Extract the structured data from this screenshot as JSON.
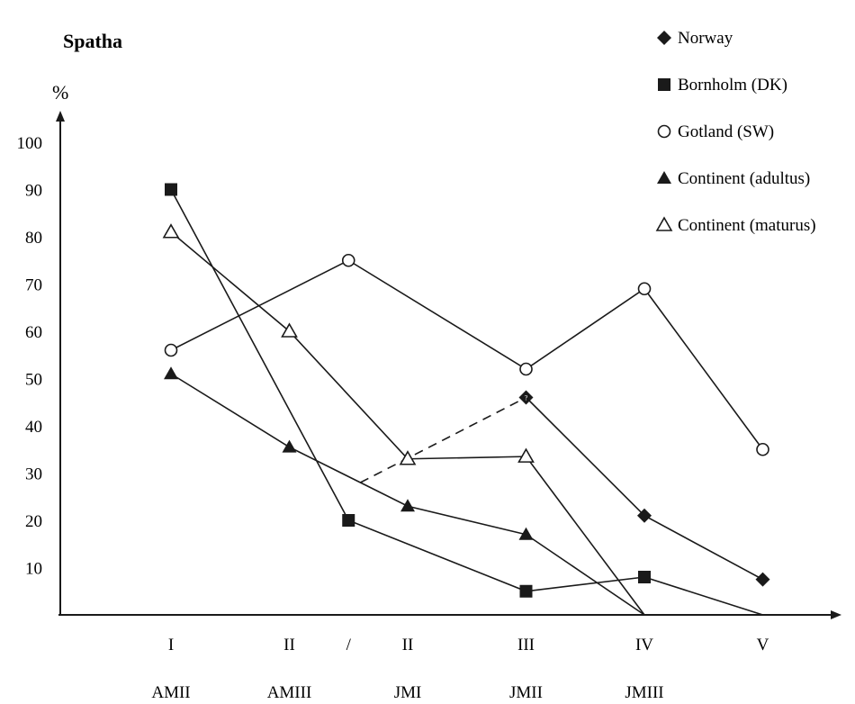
{
  "chart_data": {
    "type": "line",
    "title": "Spatha",
    "ylabel": "%",
    "ylim": [
      0,
      100
    ],
    "yticks": [
      10,
      20,
      30,
      40,
      50,
      60,
      70,
      80,
      90,
      100
    ],
    "x_tick_labels": [
      {
        "x": 1,
        "top": "I",
        "bottom": "AMII"
      },
      {
        "x": 2,
        "top": "II",
        "bottom": "AMIII"
      },
      {
        "x": 2.5,
        "top": "/",
        "bottom": ""
      },
      {
        "x": 3,
        "top": "II",
        "bottom": "JMI"
      },
      {
        "x": 4,
        "top": "III",
        "bottom": "JMII"
      },
      {
        "x": 5,
        "top": "IV",
        "bottom": "JMIII"
      },
      {
        "x": 6,
        "top": "V",
        "bottom": ""
      }
    ],
    "legend_position": "top-right",
    "grid": false,
    "series": [
      {
        "name": "Norway",
        "marker": "diamond-filled",
        "color": "#1a1a1a",
        "points": [
          [
            4,
            46
          ],
          [
            5,
            21
          ],
          [
            6,
            7.5
          ]
        ],
        "dashed_points": [
          [
            2.6,
            28
          ],
          [
            4,
            46
          ]
        ],
        "note_point": [
          4,
          46
        ],
        "note": "?"
      },
      {
        "name": "Bornholm (DK)",
        "marker": "square-filled",
        "color": "#1a1a1a",
        "points": [
          [
            1,
            90
          ],
          [
            2.5,
            20
          ],
          [
            4,
            5
          ],
          [
            5,
            8
          ]
        ],
        "tail_points": [
          [
            5,
            8
          ],
          [
            6,
            0
          ]
        ]
      },
      {
        "name": "Gotland (SW)",
        "marker": "circle-open",
        "color": "#1a1a1a",
        "points": [
          [
            1,
            56
          ],
          [
            2.5,
            75
          ],
          [
            4,
            52
          ],
          [
            5,
            69
          ],
          [
            6,
            35
          ]
        ]
      },
      {
        "name": "Continent (adultus)",
        "marker": "triangle-filled",
        "color": "#1a1a1a",
        "points": [
          [
            1,
            51
          ],
          [
            2,
            35.5
          ],
          [
            3,
            23
          ],
          [
            4,
            17
          ]
        ],
        "tail_points": [
          [
            4,
            17
          ],
          [
            5,
            0
          ]
        ]
      },
      {
        "name": "Continent (maturus)",
        "marker": "triangle-open",
        "color": "#1a1a1a",
        "points": [
          [
            1,
            81
          ],
          [
            2,
            60
          ],
          [
            3,
            33
          ],
          [
            4,
            33.5
          ]
        ],
        "tail_points": [
          [
            4,
            33.5
          ],
          [
            5,
            0
          ]
        ]
      }
    ]
  }
}
